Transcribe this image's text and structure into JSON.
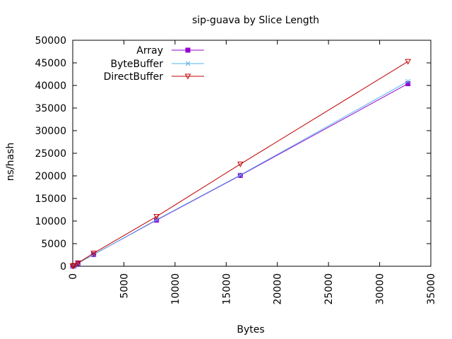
{
  "chart_data": {
    "type": "line",
    "title": "sip-guava by Slice Length",
    "xlabel": "Bytes",
    "ylabel": "ns/hash",
    "xlim": [
      0,
      35000
    ],
    "ylim": [
      0,
      50000
    ],
    "xticks": [
      0,
      5000,
      10000,
      15000,
      20000,
      25000,
      30000,
      35000
    ],
    "yticks": [
      0,
      5000,
      10000,
      15000,
      20000,
      25000,
      30000,
      35000,
      40000,
      45000,
      50000
    ],
    "grid": false,
    "legend_position": "top-left",
    "x": [
      8,
      32,
      128,
      512,
      2048,
      8192,
      16384,
      32768
    ],
    "series": [
      {
        "name": "Array",
        "color": "#9400d3",
        "marker": "filled-square",
        "values": [
          40,
          60,
          120,
          650,
          2600,
          10200,
          20100,
          40400
        ]
      },
      {
        "name": "ByteBuffer",
        "color": "#56b4e9",
        "marker": "x-cross",
        "values": [
          40,
          60,
          120,
          650,
          2600,
          10300,
          20200,
          40900
        ]
      },
      {
        "name": "DirectBuffer",
        "color": "#c00000",
        "marker": "open-triangle-down",
        "values": [
          40,
          70,
          150,
          730,
          2900,
          11000,
          22600,
          45300
        ]
      }
    ]
  }
}
